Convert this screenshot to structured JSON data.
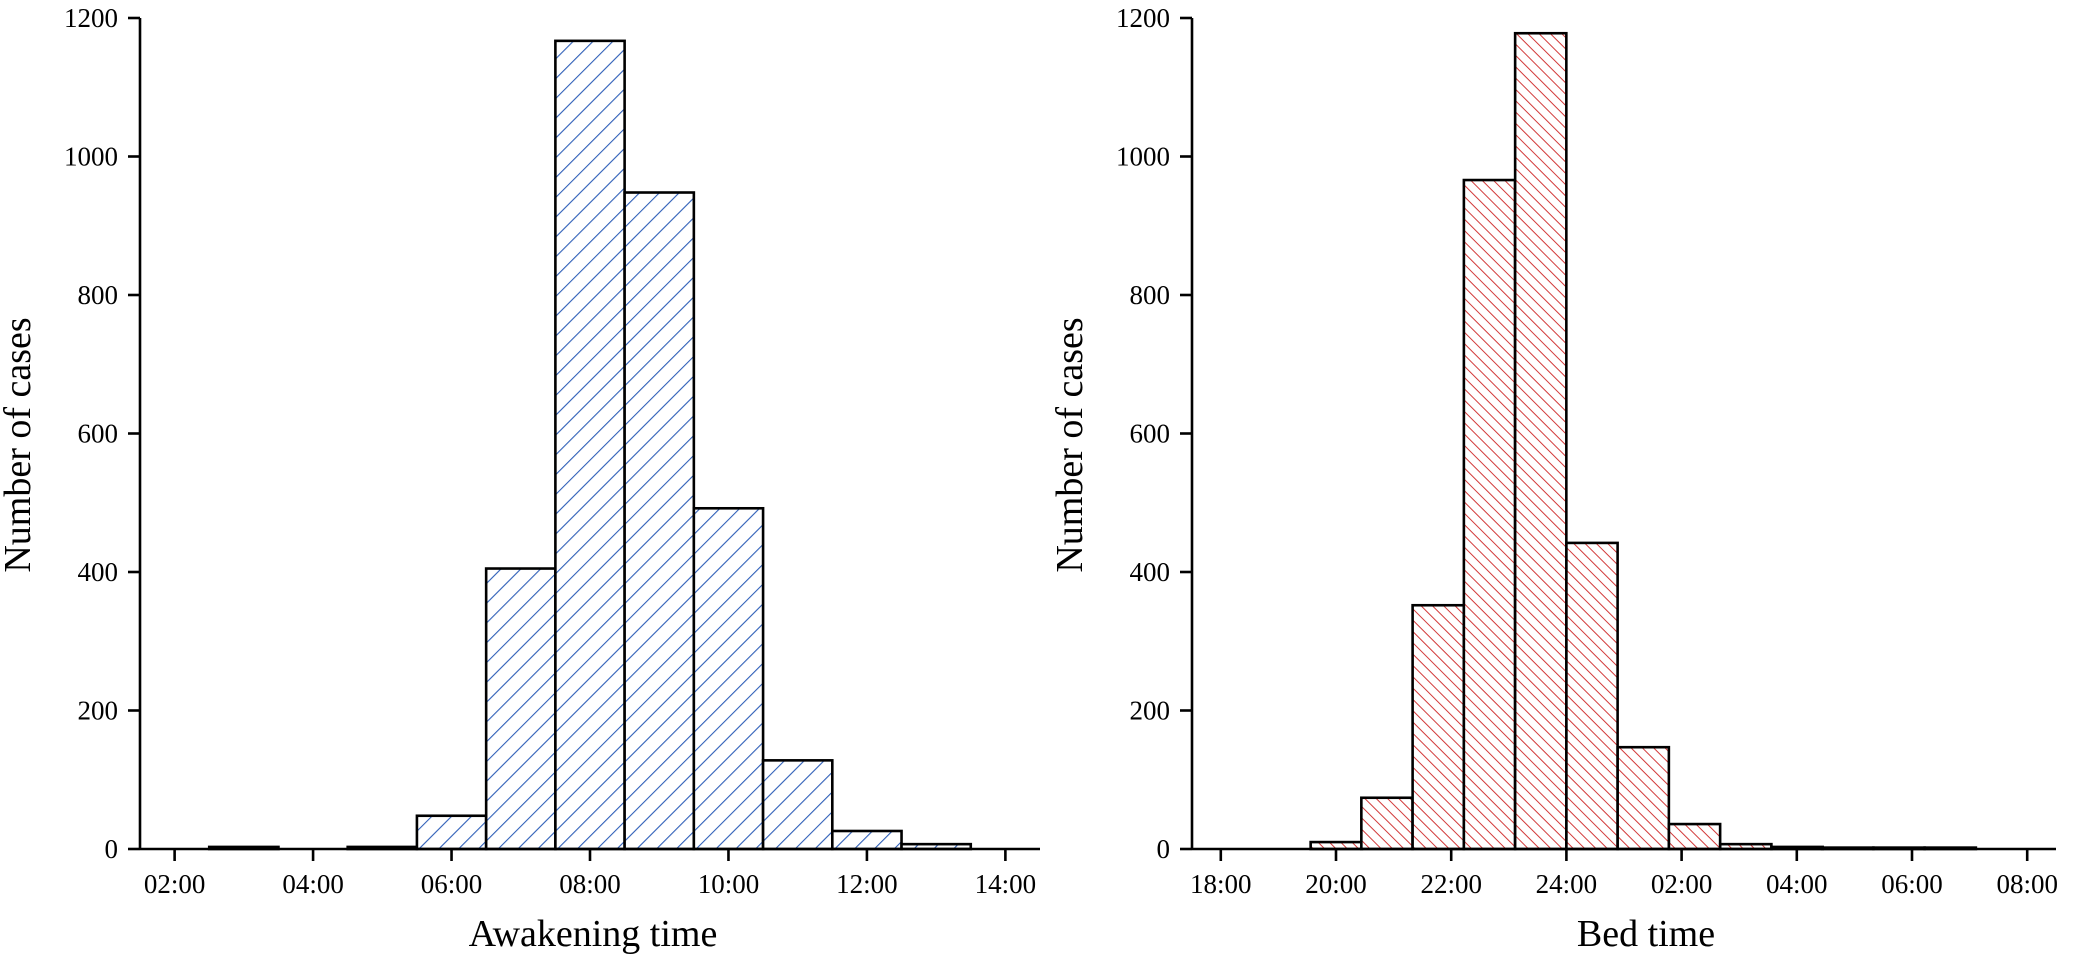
{
  "chart_data": [
    {
      "type": "bar",
      "panel": "left",
      "xlabel": "Awakening time",
      "ylabel": "Number of cases",
      "ylim": [
        0,
        1200
      ],
      "yticks": [
        0,
        200,
        400,
        600,
        800,
        1000,
        1200
      ],
      "xlim": [
        1.5,
        14.5
      ],
      "xticks": [
        {
          "value": 2,
          "label": "02:00"
        },
        {
          "value": 4,
          "label": "04:00"
        },
        {
          "value": 6,
          "label": "06:00"
        },
        {
          "value": 8,
          "label": "08:00"
        },
        {
          "value": 10,
          "label": "10:00"
        },
        {
          "value": 12,
          "label": "12:00"
        },
        {
          "value": 14,
          "label": "14:00"
        }
      ],
      "bin_width": 1,
      "bins": [
        {
          "start": 2.5,
          "value": 3
        },
        {
          "start": 4.5,
          "value": 3
        },
        {
          "start": 5.5,
          "value": 48
        },
        {
          "start": 6.5,
          "value": 405
        },
        {
          "start": 7.5,
          "value": 1167
        },
        {
          "start": 8.5,
          "value": 948
        },
        {
          "start": 9.5,
          "value": 492
        },
        {
          "start": 10.5,
          "value": 128
        },
        {
          "start": 11.5,
          "value": 26
        },
        {
          "start": 12.5,
          "value": 7
        }
      ],
      "fill_pattern": "diagonal-hatch",
      "hatch_color": "#2f5fb8",
      "grid": false
    },
    {
      "type": "bar",
      "panel": "right",
      "xlabel": "Bed time",
      "ylabel": "Number of cases",
      "ylim": [
        0,
        1200
      ],
      "yticks": [
        0,
        200,
        400,
        600,
        800,
        1000,
        1200
      ],
      "xlim": [
        17.5,
        32.5
      ],
      "xticks": [
        {
          "value": 18,
          "label": "18:00"
        },
        {
          "value": 20,
          "label": "20:00"
        },
        {
          "value": 22,
          "label": "22:00"
        },
        {
          "value": 24,
          "label": "24:00"
        },
        {
          "value": 26,
          "label": "02:00"
        },
        {
          "value": 28,
          "label": "04:00"
        },
        {
          "value": 30,
          "label": "06:00"
        },
        {
          "value": 32,
          "label": "08:00"
        }
      ],
      "bin_width": 0.889,
      "bins": [
        {
          "start": 19.56,
          "value": 10
        },
        {
          "start": 20.44,
          "value": 74
        },
        {
          "start": 21.33,
          "value": 352
        },
        {
          "start": 22.22,
          "value": 966
        },
        {
          "start": 23.11,
          "value": 1178
        },
        {
          "start": 24.0,
          "value": 442
        },
        {
          "start": 24.89,
          "value": 147
        },
        {
          "start": 25.78,
          "value": 36
        },
        {
          "start": 26.67,
          "value": 7
        },
        {
          "start": 27.56,
          "value": 3
        },
        {
          "start": 28.44,
          "value": 2
        },
        {
          "start": 29.33,
          "value": 2
        },
        {
          "start": 30.22,
          "value": 2
        }
      ],
      "fill_pattern": "diagonal-hatch",
      "hatch_color": "#d23a3a",
      "grid": false
    }
  ]
}
